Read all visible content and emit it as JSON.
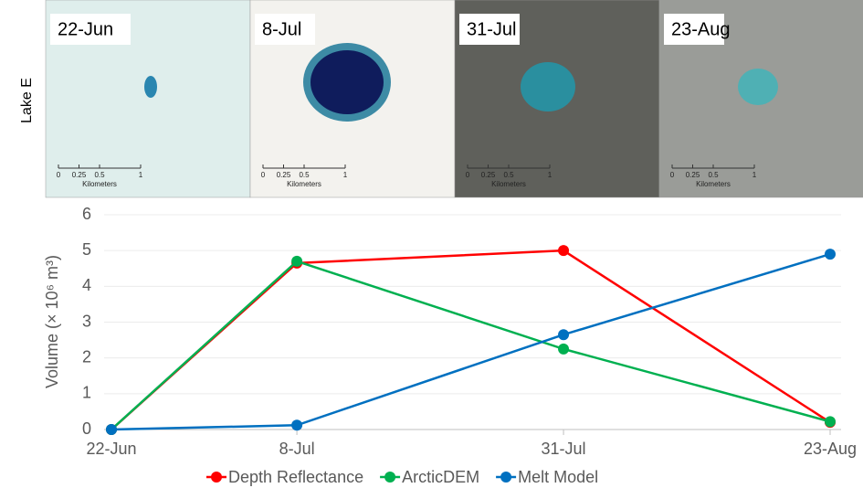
{
  "images": {
    "row_label": "Lake E",
    "panels": [
      "22-Jun",
      "8-Jul",
      "31-Jul",
      "23-Aug"
    ],
    "scale_ticks": [
      "0",
      "0.25",
      "0.5",
      "1"
    ],
    "scale_unit": "Kilometers"
  },
  "chart_data": {
    "type": "line",
    "y_label": "Volume (× 10⁶ m³)",
    "x": [
      "22-Jun",
      "8-Jul",
      "31-Jul",
      "23-Aug"
    ],
    "series": [
      {
        "name": "Depth Reflectance",
        "color": "#ff0000",
        "values": [
          0,
          4.65,
          5.0,
          0.2
        ]
      },
      {
        "name": "ArcticDEM",
        "color": "#00b050",
        "values": [
          0,
          4.7,
          2.25,
          0.22
        ]
      },
      {
        "name": "Melt Model",
        "color": "#0070c0",
        "values": [
          0,
          0.12,
          2.65,
          4.9
        ]
      }
    ],
    "ylim": [
      0,
      6
    ],
    "yticks": [
      0,
      1,
      2,
      3,
      4,
      5,
      6
    ],
    "grid": true,
    "legend": "bottom"
  }
}
